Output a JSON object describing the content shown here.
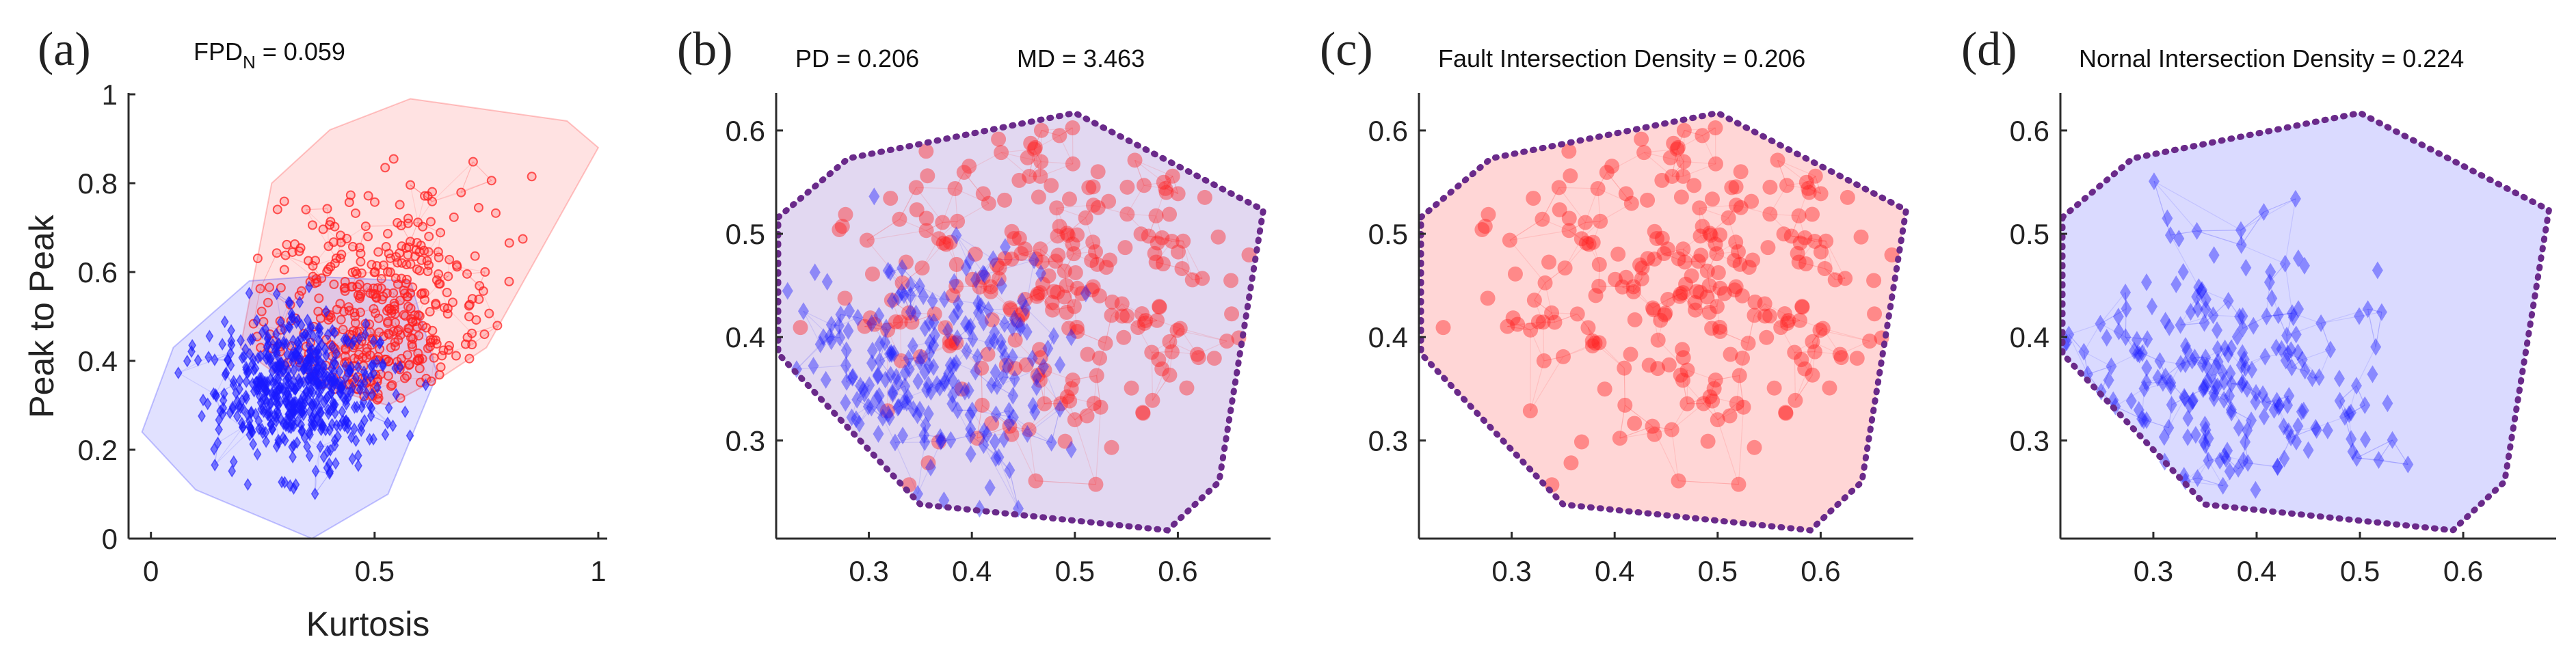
{
  "figure": {
    "background": "#ffffff"
  },
  "colors": {
    "fault": "#ff2020",
    "normal": "#1a1aff",
    "hull": "#6a2a8a"
  },
  "chart_data": [
    {
      "id": "a",
      "type": "scatter",
      "panel_label": "(a)",
      "annotation": {
        "main": "FPD",
        "sub": "N",
        "value": " = 0.059"
      },
      "annotations": [],
      "xlabel": "Kurtosis",
      "ylabel": "Peak to Peak",
      "xlim": [
        -0.05,
        1.02
      ],
      "ylim": [
        0,
        1
      ],
      "xticks": [
        0,
        0.5,
        1
      ],
      "xtick_labels": [
        "0",
        "0.5",
        "1"
      ],
      "yticks": [
        0,
        0.2,
        0.4,
        0.6,
        0.8,
        1
      ],
      "ytick_labels": [
        "0",
        "0.2",
        "0.4",
        "0.6",
        "0.8",
        "1"
      ],
      "series": [
        {
          "name": "Fault",
          "marker": "circle-hollow",
          "count": 420,
          "center": [
            0.5,
            0.5
          ],
          "spread": [
            0.13,
            0.13
          ],
          "hull": [
            [
              0.2,
              0.43
            ],
            [
              0.27,
              0.8
            ],
            [
              0.4,
              0.92
            ],
            [
              0.58,
              0.99
            ],
            [
              0.93,
              0.94
            ],
            [
              1.0,
              0.88
            ],
            [
              0.75,
              0.43
            ],
            [
              0.66,
              0.37
            ],
            [
              0.53,
              0.3
            ],
            [
              0.28,
              0.37
            ]
          ]
        },
        {
          "name": "Normal",
          "marker": "diamond",
          "count": 560,
          "center": [
            0.33,
            0.34
          ],
          "spread": [
            0.09,
            0.08
          ],
          "hull": [
            [
              -0.02,
              0.24
            ],
            [
              0.05,
              0.43
            ],
            [
              0.22,
              0.58
            ],
            [
              0.36,
              0.59
            ],
            [
              0.58,
              0.58
            ],
            [
              0.64,
              0.37
            ],
            [
              0.53,
              0.1
            ],
            [
              0.36,
              0.0
            ],
            [
              0.1,
              0.11
            ]
          ]
        }
      ]
    },
    {
      "id": "b",
      "type": "scatter",
      "panel_label": "(b)",
      "annotations": [
        "PD = 0.206",
        "MD = 3.463"
      ],
      "xlabel": "",
      "ylabel": "",
      "xlim": [
        0.21,
        0.69
      ],
      "ylim": [
        0.205,
        0.635
      ],
      "xticks": [
        0.3,
        0.4,
        0.5,
        0.6
      ],
      "xtick_labels": [
        "0.3",
        "0.4",
        "0.5",
        "0.6"
      ],
      "yticks": [
        0.3,
        0.4,
        0.5,
        0.6
      ],
      "ytick_labels": [
        "0.3",
        "0.4",
        "0.5",
        "0.6"
      ],
      "fill": {
        "color": "#7a4fbd",
        "opacity": 0.22
      },
      "hull_dotted": true,
      "hull": [
        [
          0.212,
          0.516
        ],
        [
          0.28,
          0.573
        ],
        [
          0.5,
          0.617
        ],
        [
          0.683,
          0.523
        ],
        [
          0.64,
          0.26
        ],
        [
          0.59,
          0.213
        ],
        [
          0.35,
          0.238
        ],
        [
          0.212,
          0.384
        ]
      ],
      "series": [
        {
          "name": "Fault",
          "marker": "circle",
          "count": 240,
          "center": [
            0.48,
            0.47
          ],
          "spread": [
            0.1,
            0.09
          ]
        },
        {
          "name": "Normal",
          "marker": "diamond",
          "count": 220,
          "center": [
            0.36,
            0.37
          ],
          "spread": [
            0.07,
            0.06
          ]
        }
      ]
    },
    {
      "id": "c",
      "type": "scatter",
      "panel_label": "(c)",
      "annotations": [
        "Fault Intersection Density = 0.206"
      ],
      "xlabel": "",
      "ylabel": "",
      "xlim": [
        0.21,
        0.69
      ],
      "ylim": [
        0.205,
        0.635
      ],
      "xticks": [
        0.3,
        0.4,
        0.5,
        0.6
      ],
      "xtick_labels": [
        "0.3",
        "0.4",
        "0.5",
        "0.6"
      ],
      "yticks": [
        0.3,
        0.4,
        0.5,
        0.6
      ],
      "ytick_labels": [
        "0.3",
        "0.4",
        "0.5",
        "0.6"
      ],
      "fill": {
        "color": "#ff8080",
        "opacity": 0.32
      },
      "hull_dotted": true,
      "hull": [
        [
          0.212,
          0.516
        ],
        [
          0.28,
          0.573
        ],
        [
          0.5,
          0.617
        ],
        [
          0.683,
          0.523
        ],
        [
          0.64,
          0.26
        ],
        [
          0.59,
          0.213
        ],
        [
          0.35,
          0.238
        ],
        [
          0.212,
          0.384
        ]
      ],
      "series": [
        {
          "name": "Fault",
          "marker": "circle",
          "count": 240,
          "center": [
            0.48,
            0.47
          ],
          "spread": [
            0.1,
            0.09
          ]
        }
      ]
    },
    {
      "id": "d",
      "type": "scatter",
      "panel_label": "(d)",
      "annotations": [
        "Nornal Intersection Density = 0.224"
      ],
      "xlabel": "",
      "ylabel": "",
      "xlim": [
        0.21,
        0.69
      ],
      "ylim": [
        0.205,
        0.635
      ],
      "xticks": [
        0.3,
        0.4,
        0.5,
        0.6
      ],
      "xtick_labels": [
        "0.3",
        "0.4",
        "0.5",
        "0.6"
      ],
      "yticks": [
        0.3,
        0.4,
        0.5,
        0.6
      ],
      "ytick_labels": [
        "0.3",
        "0.4",
        "0.5",
        "0.6"
      ],
      "fill": {
        "color": "#8c8cff",
        "opacity": 0.32
      },
      "hull_dotted": true,
      "hull": [
        [
          0.212,
          0.516
        ],
        [
          0.28,
          0.573
        ],
        [
          0.5,
          0.617
        ],
        [
          0.683,
          0.523
        ],
        [
          0.64,
          0.26
        ],
        [
          0.59,
          0.213
        ],
        [
          0.35,
          0.238
        ],
        [
          0.212,
          0.384
        ]
      ],
      "series": [
        {
          "name": "Normal",
          "marker": "diamond",
          "count": 220,
          "center": [
            0.36,
            0.37
          ],
          "spread": [
            0.07,
            0.06
          ]
        }
      ]
    }
  ]
}
